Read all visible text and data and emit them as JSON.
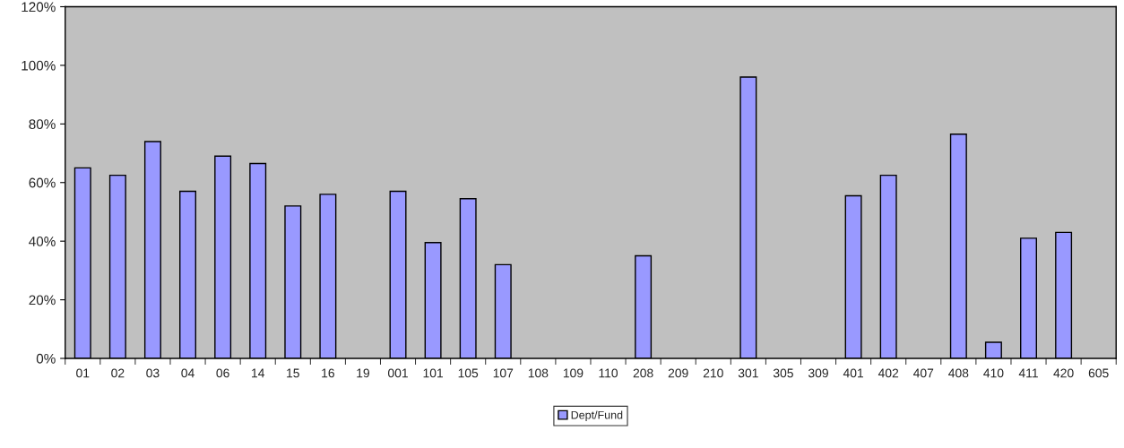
{
  "chart_data": {
    "type": "bar",
    "categories": [
      "01",
      "02",
      "03",
      "04",
      "06",
      "14",
      "15",
      "16",
      "19",
      "001",
      "101",
      "105",
      "107",
      "108",
      "109",
      "110",
      "208",
      "209",
      "210",
      "301",
      "305",
      "309",
      "401",
      "402",
      "407",
      "408",
      "410",
      "411",
      "420",
      "605"
    ],
    "series": [
      {
        "name": "Dept/Fund",
        "color": "#9999ff",
        "values": [
          65,
          62.5,
          74,
          57,
          69,
          66.5,
          52,
          56,
          null,
          57,
          39.5,
          54.5,
          32,
          null,
          null,
          null,
          35,
          null,
          null,
          96,
          null,
          null,
          55.5,
          62.5,
          null,
          76.5,
          5.5,
          41,
          43,
          null
        ]
      }
    ],
    "ylim": [
      0,
      120
    ],
    "yticks": [
      {
        "value": 0,
        "label": "0%"
      },
      {
        "value": 20,
        "label": "20%"
      },
      {
        "value": 40,
        "label": "40%"
      },
      {
        "value": 60,
        "label": "60%"
      },
      {
        "value": 80,
        "label": "80%"
      },
      {
        "value": 100,
        "label": "100%"
      },
      {
        "value": 120,
        "label": "120%"
      }
    ],
    "grid": false,
    "legend": "bottom"
  }
}
